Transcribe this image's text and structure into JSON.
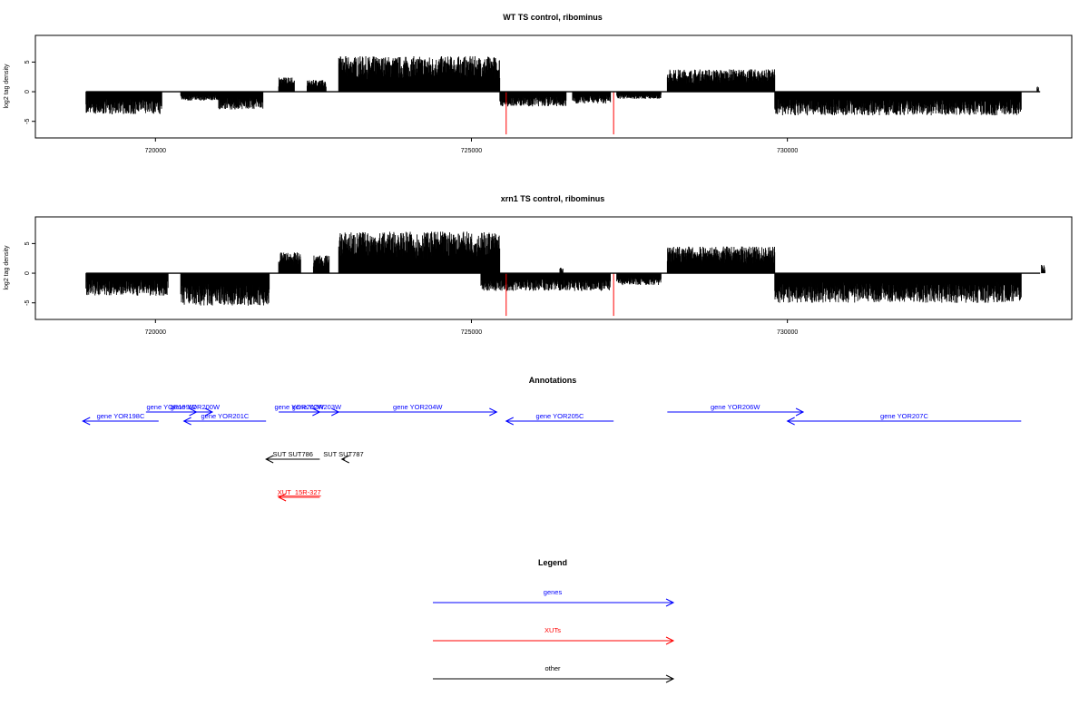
{
  "chart_data": [
    {
      "type": "bar",
      "title": "WT TS control, ribominus",
      "ylabel": "log2 tag density",
      "xlim": [
        718100,
        734500
      ],
      "ylim": [
        -7.8,
        9.5
      ],
      "xticks": [
        720000,
        725000,
        730000
      ],
      "yticks": [
        -5,
        0,
        5
      ],
      "ytick_labels": [
        "-5",
        "0",
        "5"
      ],
      "highlight_color": "#ff0000",
      "forward_regions": [
        {
          "from": 721950,
          "to": 722200,
          "max": 2.5
        },
        {
          "from": 722400,
          "to": 722700,
          "max": 2.0
        },
        {
          "from": 722900,
          "to": 725450,
          "max": 6.0
        },
        {
          "from": 728100,
          "to": 729800,
          "max": 3.8
        },
        {
          "from": 733950,
          "to": 733980,
          "max": 1.0
        }
      ],
      "reverse_regions": [
        {
          "from": 718900,
          "to": 720100,
          "max": 3.8
        },
        {
          "from": 720400,
          "to": 721000,
          "max": 1.5
        },
        {
          "from": 721000,
          "to": 721700,
          "max": 3.0
        },
        {
          "from": 725450,
          "to": 726500,
          "max": 2.5
        },
        {
          "from": 726600,
          "to": 727200,
          "max": 2.0
        },
        {
          "from": 727300,
          "to": 728000,
          "max": 1.2
        },
        {
          "from": 729800,
          "to": 733700,
          "max": 4.0
        }
      ],
      "spikes": [
        {
          "x": 725550,
          "value": -7.2
        },
        {
          "x": 727250,
          "value": -7.2
        }
      ]
    },
    {
      "type": "bar",
      "title": "xrn1 TS control, ribominus",
      "ylabel": "log2 tag density",
      "xlim": [
        718100,
        734500
      ],
      "ylim": [
        -7.8,
        9.5
      ],
      "xticks": [
        720000,
        725000,
        730000
      ],
      "yticks": [
        -5,
        0,
        5
      ],
      "ytick_labels": [
        "-5",
        "0",
        "5"
      ],
      "highlight_color": "#ff0000",
      "forward_regions": [
        {
          "from": 721950,
          "to": 722300,
          "max": 3.5
        },
        {
          "from": 722500,
          "to": 722750,
          "max": 3.0
        },
        {
          "from": 722900,
          "to": 725450,
          "max": 7.0
        },
        {
          "from": 726400,
          "to": 726450,
          "max": 1.0
        },
        {
          "from": 728100,
          "to": 729800,
          "max": 4.5
        },
        {
          "from": 734020,
          "to": 734080,
          "max": 1.5
        }
      ],
      "reverse_regions": [
        {
          "from": 718900,
          "to": 720200,
          "max": 3.8
        },
        {
          "from": 720400,
          "to": 721800,
          "max": 5.5
        },
        {
          "from": 725150,
          "to": 727200,
          "max": 3.0
        },
        {
          "from": 727300,
          "to": 728000,
          "max": 2.0
        },
        {
          "from": 729800,
          "to": 733700,
          "max": 5.0
        }
      ],
      "spikes": [
        {
          "x": 725550,
          "value": -7.2
        },
        {
          "x": 727250,
          "value": -7.2
        }
      ]
    }
  ],
  "annotations": {
    "title": "Annotations",
    "features": [
      {
        "label": "gene YOR198C",
        "from": 720050,
        "to": 718850,
        "category": "gene",
        "row": 1
      },
      {
        "label": "gene YOR199W",
        "from": 719850,
        "to": 720650,
        "category": "gene",
        "row": 0
      },
      {
        "label": "gene YOR200W",
        "from": 720350,
        "to": 720900,
        "category": "gene",
        "row": 0
      },
      {
        "label": "gene YOR201C",
        "from": 721750,
        "to": 720450,
        "category": "gene",
        "row": 1
      },
      {
        "label": "gene YOR202W",
        "from": 721950,
        "to": 722600,
        "category": "gene",
        "row": 0
      },
      {
        "label": "gene YOR203W",
        "from": 722200,
        "to": 722900,
        "category": "gene",
        "row": 0
      },
      {
        "label": "gene YOR204W",
        "from": 722900,
        "to": 725400,
        "category": "gene",
        "row": 0
      },
      {
        "label": "gene YOR205C",
        "from": 727250,
        "to": 725550,
        "category": "gene",
        "row": 1
      },
      {
        "label": "gene YOR206W",
        "from": 728100,
        "to": 730250,
        "category": "gene",
        "row": 0
      },
      {
        "label": "gene YOR207C",
        "from": 733700,
        "to": 730000,
        "category": "gene",
        "row": 1
      },
      {
        "label": "SUT SUT786",
        "from": 722600,
        "to": 721750,
        "category": "other",
        "row": 2
      },
      {
        "label": "SUT SUT787",
        "from": 723000,
        "to": 722950,
        "category": "other",
        "row": 2
      },
      {
        "label": "XUT_15R-327",
        "from": 722600,
        "to": 721950,
        "category": "xut",
        "row": 3
      }
    ]
  },
  "legend": {
    "title": "Legend",
    "items": [
      {
        "label": "genes",
        "category": "gene"
      },
      {
        "label": "XUTs",
        "category": "xut"
      },
      {
        "label": "other",
        "category": "other"
      }
    ]
  },
  "colors": {
    "gene": "#0000ff",
    "xut": "#ff0000",
    "other": "#000000"
  }
}
